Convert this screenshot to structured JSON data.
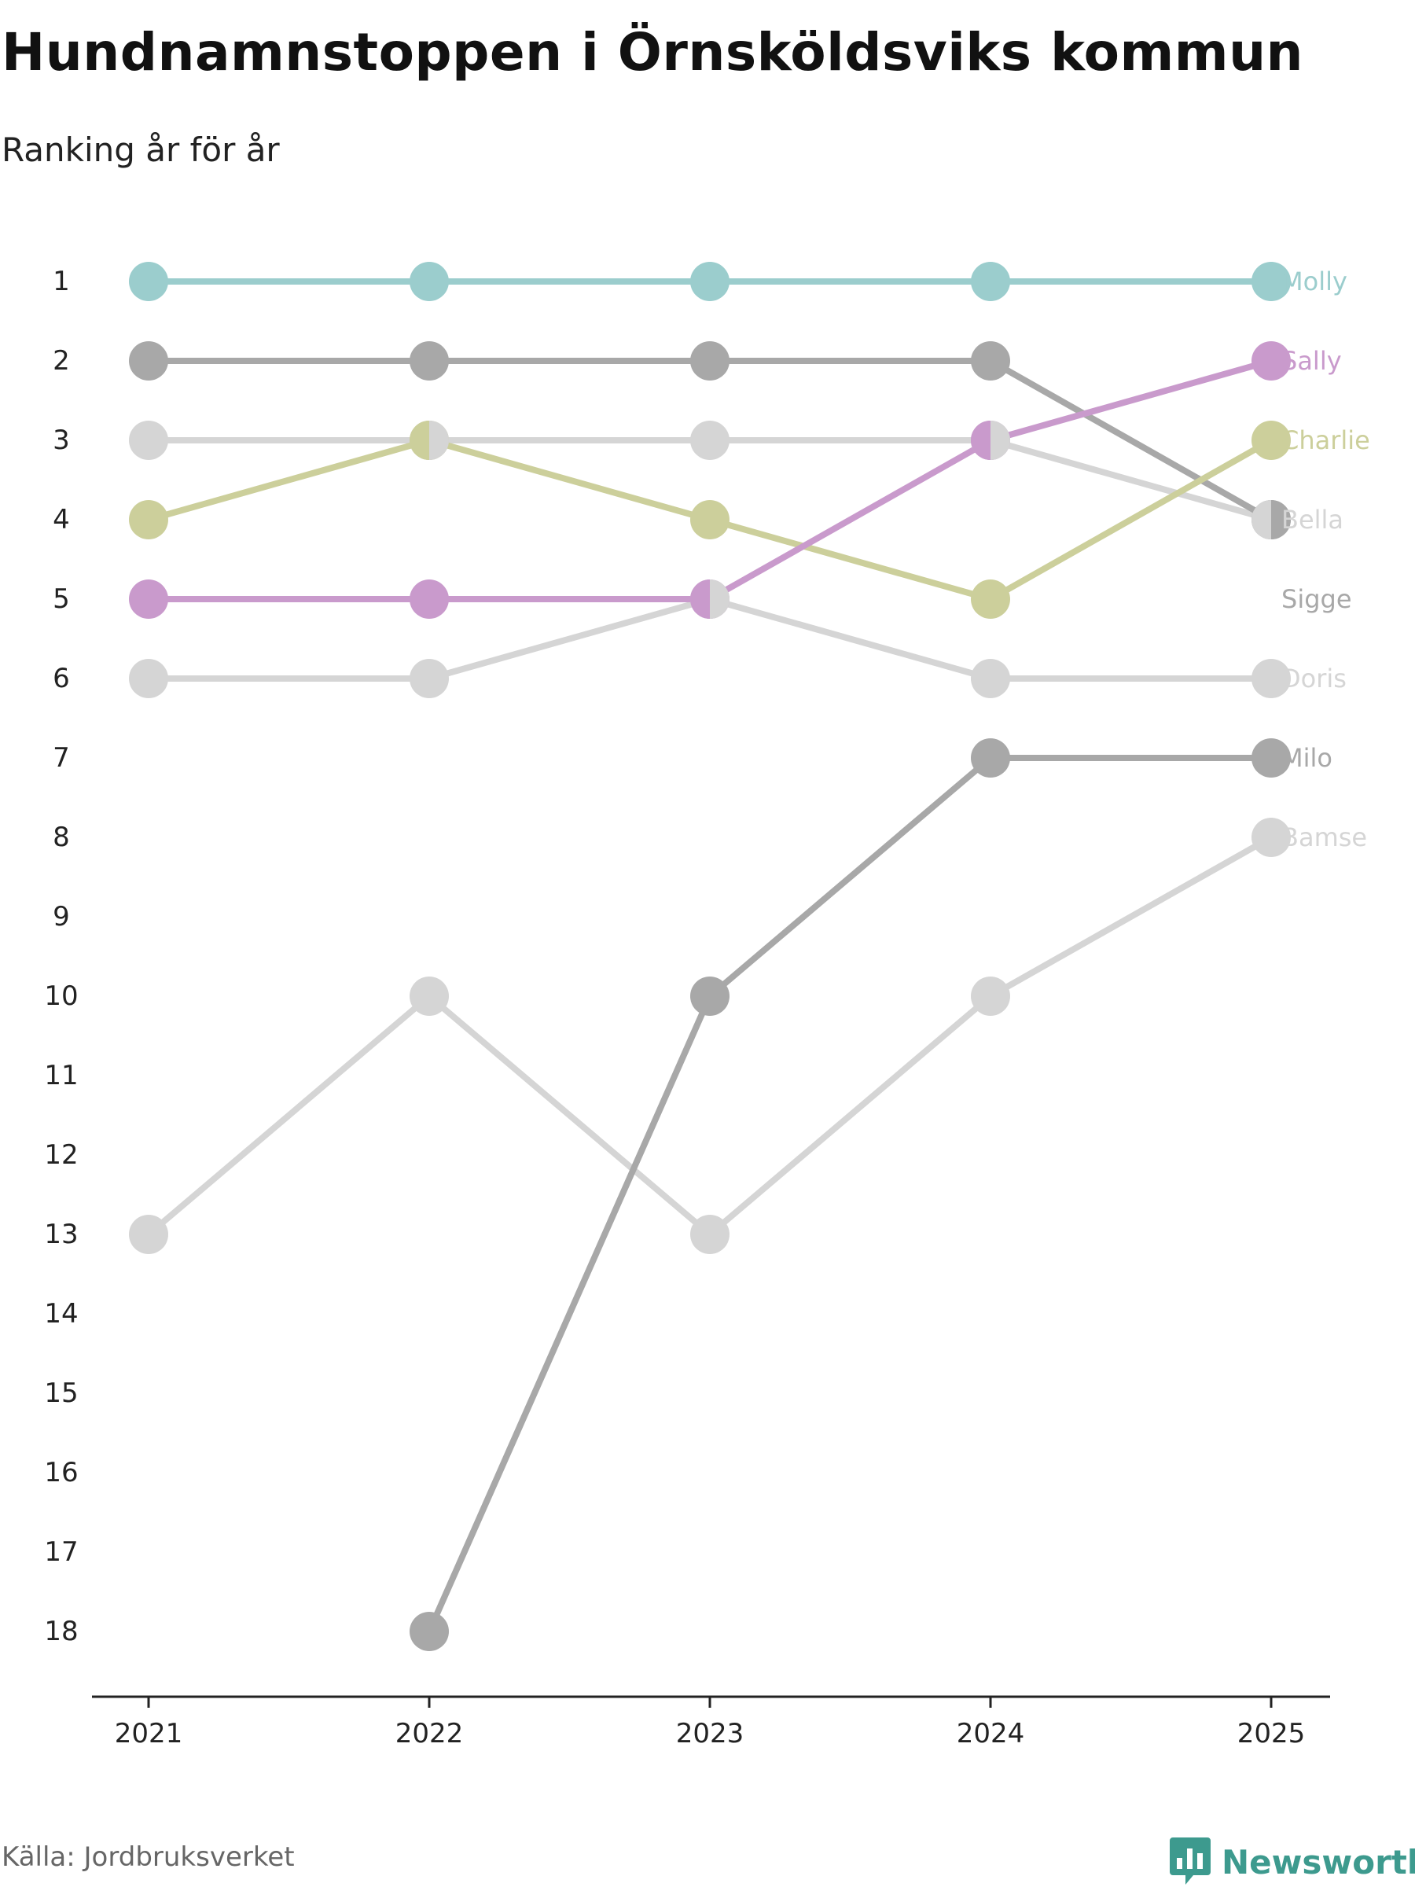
{
  "title": "Hundnamnstoppen i Örnsköldsviks kommun",
  "subtitle": "Ranking år för år",
  "source": "Källa: Jordbruksverket",
  "brand": "Newsworthy",
  "brand_color": "#3d9a8e",
  "chart_data": {
    "type": "line",
    "x": [
      "2021",
      "2022",
      "2023",
      "2024",
      "2025"
    ],
    "y_ticks": [
      "1",
      "2",
      "3",
      "4",
      "5",
      "6",
      "7",
      "8",
      "9",
      "10",
      "11",
      "12",
      "13",
      "14",
      "15",
      "16",
      "17",
      "18"
    ],
    "ylim": [
      1,
      18
    ],
    "y_inverted": true,
    "series": [
      {
        "name": "Bamse",
        "color": "#d5d5d5",
        "values": [
          13,
          10,
          13,
          10,
          8
        ]
      },
      {
        "name": "Doris",
        "color": "#d5d5d5",
        "values": [
          6,
          6,
          5,
          6,
          6
        ]
      },
      {
        "name": "Bella",
        "color": "#d5d5d5",
        "values": [
          3,
          3,
          3,
          3,
          4
        ]
      },
      {
        "name": "Milo",
        "color": "#a8a8a8",
        "values": [
          null,
          18,
          10,
          7,
          7
        ]
      },
      {
        "name": "Sigge",
        "color": "#a8a8a8",
        "values": [
          2,
          2,
          2,
          2,
          4
        ]
      },
      {
        "name": "Charlie",
        "color": "#cccf9b",
        "values": [
          4,
          3,
          4,
          5,
          3
        ]
      },
      {
        "name": "Sally",
        "color": "#c99acc",
        "values": [
          5,
          5,
          5,
          3,
          2
        ]
      },
      {
        "name": "Molly",
        "color": "#9bcdcd",
        "values": [
          1,
          1,
          1,
          1,
          1
        ]
      }
    ],
    "labels": [
      {
        "name": "Molly",
        "color": "#9bcdcd",
        "rank": 1
      },
      {
        "name": "Sally",
        "color": "#c99acc",
        "rank": 2
      },
      {
        "name": "Charlie",
        "color": "#cccf9b",
        "rank": 3
      },
      {
        "name": "Bella",
        "color": "#d5d5d5",
        "rank": 4
      },
      {
        "name": "Sigge",
        "color": "#a8a8a8",
        "rank": 5
      },
      {
        "name": "Doris",
        "color": "#d5d5d5",
        "rank": 6
      },
      {
        "name": "Milo",
        "color": "#a8a8a8",
        "rank": 7
      },
      {
        "name": "Bamse",
        "color": "#d5d5d5",
        "rank": 8
      }
    ]
  }
}
